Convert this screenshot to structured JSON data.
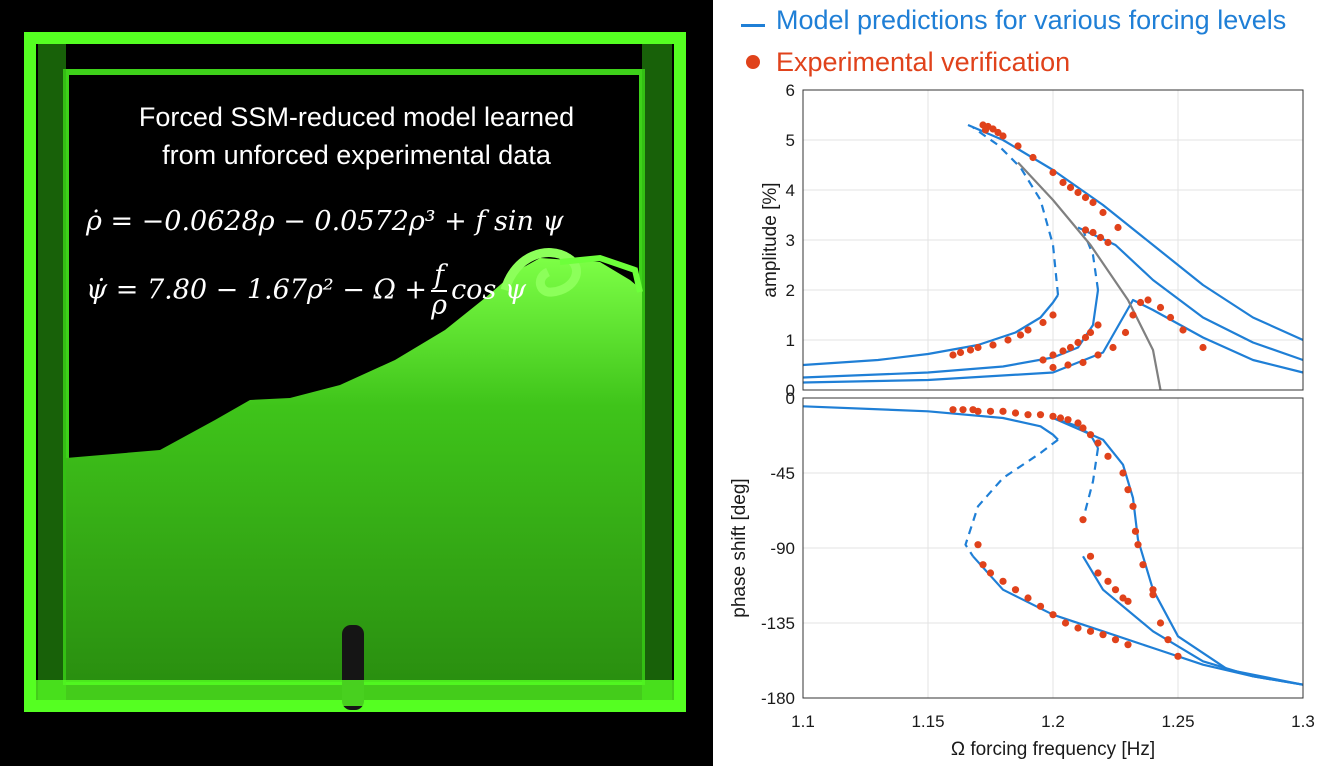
{
  "photo": {
    "caption_line1": "Forced SSM-reduced model learned",
    "caption_line2": "from unforced experimental data",
    "eq1": "ρ̇ = −0.0628ρ − 0.0572ρ³ + f sin ψ",
    "eq2_left": "ψ̇ = 7.80 − 1.67ρ² − Ω +",
    "eq2_num": "f",
    "eq2_den": "ρ",
    "eq2_right": "cos ψ",
    "tank_color": "#55ff22"
  },
  "legend": {
    "model": "Model predictions for various forcing levels",
    "experiment": "Experimental verification",
    "model_color": "#1f7fd6",
    "experiment_color": "#e0421b"
  },
  "chart_data": {
    "type": "line",
    "xlabel": "Ω forcing frequency [Hz]",
    "xlim": [
      1.1,
      1.3
    ],
    "x_ticks": [
      "1.1",
      "1.15",
      "1.2",
      "1.25",
      "1.3"
    ],
    "grid": true,
    "backbone_color": "#808080",
    "panels": [
      {
        "id": "amplitude",
        "ylabel": "amplitude [%]",
        "ylim": [
          0,
          6
        ],
        "y_ticks": [
          "6",
          "5",
          "4",
          "3",
          "2",
          "1",
          "0"
        ],
        "series": [
          {
            "style": "solid",
            "x": [
              1.1,
              1.13,
              1.15,
              1.17,
              1.185,
              1.195,
              1.2,
              1.202
            ],
            "y": [
              0.5,
              0.6,
              0.72,
              0.9,
              1.15,
              1.45,
              1.75,
              1.9
            ]
          },
          {
            "style": "dashed",
            "x": [
              1.202,
              1.2,
              1.195,
              1.187,
              1.178,
              1.168
            ],
            "y": [
              1.9,
              2.9,
              3.8,
              4.45,
              4.9,
              5.25
            ]
          },
          {
            "style": "solid",
            "x": [
              1.166,
              1.18,
              1.2,
              1.22,
              1.24,
              1.26,
              1.28,
              1.3
            ],
            "y": [
              5.3,
              5.0,
              4.4,
              3.7,
              2.9,
              2.1,
              1.45,
              1.0
            ]
          },
          {
            "style": "solid",
            "x": [
              1.1,
              1.15,
              1.18,
              1.2,
              1.21,
              1.216,
              1.218
            ],
            "y": [
              0.25,
              0.35,
              0.47,
              0.65,
              0.85,
              1.3,
              2.0
            ]
          },
          {
            "style": "dashed",
            "x": [
              1.218,
              1.216,
              1.212
            ],
            "y": [
              2.0,
              2.7,
              3.2
            ]
          },
          {
            "style": "solid",
            "x": [
              1.21,
              1.225,
              1.24,
              1.26,
              1.28,
              1.3
            ],
            "y": [
              3.25,
              2.9,
              2.2,
              1.45,
              0.95,
              0.6
            ]
          },
          {
            "style": "solid",
            "x": [
              1.1,
              1.15,
              1.2,
              1.22,
              1.232,
              1.24,
              1.26,
              1.28,
              1.3
            ],
            "y": [
              0.15,
              0.2,
              0.35,
              0.75,
              1.8,
              1.6,
              1.05,
              0.6,
              0.35
            ]
          },
          {
            "style": "backbone",
            "x": [
              1.186,
              1.2,
              1.215,
              1.23,
              1.24,
              1.243
            ],
            "y": [
              4.55,
              3.8,
              2.9,
              1.8,
              0.8,
              0
            ]
          }
        ],
        "experiment": {
          "x": [
            1.16,
            1.163,
            1.167,
            1.17,
            1.176,
            1.182,
            1.187,
            1.19,
            1.196,
            1.2,
            1.172,
            1.174,
            1.176,
            1.178,
            1.18,
            1.186,
            1.192,
            1.2,
            1.204,
            1.207,
            1.21,
            1.213,
            1.216,
            1.22,
            1.226,
            1.173,
            1.196,
            1.2,
            1.204,
            1.207,
            1.21,
            1.213,
            1.215,
            1.218,
            1.213,
            1.216,
            1.219,
            1.222,
            1.2,
            1.206,
            1.212,
            1.218,
            1.224,
            1.229,
            1.232,
            1.235,
            1.238,
            1.243,
            1.247,
            1.252,
            1.26
          ],
          "y": [
            0.7,
            0.75,
            0.8,
            0.85,
            0.9,
            1.0,
            1.1,
            1.2,
            1.35,
            1.5,
            5.3,
            5.27,
            5.22,
            5.15,
            5.08,
            4.88,
            4.65,
            4.35,
            4.15,
            4.05,
            3.95,
            3.85,
            3.75,
            3.55,
            3.25,
            5.2,
            0.6,
            0.7,
            0.78,
            0.85,
            0.95,
            1.05,
            1.15,
            1.3,
            3.2,
            3.15,
            3.05,
            2.95,
            0.45,
            0.5,
            0.55,
            0.7,
            0.85,
            1.15,
            1.5,
            1.75,
            1.8,
            1.65,
            1.45,
            1.2,
            0.85
          ]
        }
      },
      {
        "id": "phase",
        "ylabel": "phase shift [deg]",
        "ylim": [
          -180,
          0
        ],
        "y_ticks": [
          "0",
          "-45",
          "-90",
          "-135",
          "-180"
        ],
        "series": [
          {
            "style": "solid",
            "x": [
              1.1,
              1.15,
              1.18,
              1.195,
              1.2,
              1.202
            ],
            "y": [
              -5,
              -8,
              -12,
              -17,
              -22,
              -25
            ]
          },
          {
            "style": "dashed",
            "x": [
              1.202,
              1.195,
              1.18,
              1.17,
              1.165,
              1.168
            ],
            "y": [
              -25,
              -33,
              -48,
              -65,
              -88,
              -95
            ]
          },
          {
            "style": "solid",
            "x": [
              1.168,
              1.18,
              1.2,
              1.22,
              1.24,
              1.26,
              1.28,
              1.3
            ],
            "y": [
              -95,
              -115,
              -130,
              -140,
              -150,
              -160,
              -167,
              -172
            ]
          },
          {
            "style": "solid",
            "x": [
              1.2,
              1.21,
              1.215,
              1.218
            ],
            "y": [
              -12,
              -17,
              -22,
              -30
            ]
          },
          {
            "style": "dashed",
            "x": [
              1.218,
              1.216,
              1.212
            ],
            "y": [
              -30,
              -50,
              -73
            ]
          },
          {
            "style": "solid",
            "x": [
              1.212,
              1.22,
              1.24,
              1.26,
              1.28,
              1.3
            ],
            "y": [
              -95,
              -115,
              -140,
              -158,
              -167,
              -172
            ]
          },
          {
            "style": "solid",
            "x": [
              1.2,
              1.22,
              1.228,
              1.232,
              1.234,
              1.24,
              1.25,
              1.27,
              1.3
            ],
            "y": [
              -12,
              -25,
              -40,
              -60,
              -85,
              -115,
              -143,
              -163,
              -172
            ]
          }
        ],
        "experiment": {
          "x": [
            1.16,
            1.164,
            1.168,
            1.17,
            1.175,
            1.18,
            1.185,
            1.19,
            1.195,
            1.2,
            1.203,
            1.206,
            1.21,
            1.212,
            1.215,
            1.218,
            1.222,
            1.228,
            1.23,
            1.232,
            1.233,
            1.234,
            1.236,
            1.24,
            1.24,
            1.243,
            1.246,
            1.25,
            1.17,
            1.172,
            1.175,
            1.18,
            1.185,
            1.19,
            1.195,
            1.2,
            1.205,
            1.21,
            1.215,
            1.22,
            1.225,
            1.23,
            1.212,
            1.215,
            1.218,
            1.222,
            1.225,
            1.228,
            1.23
          ],
          "y": [
            -7,
            -7,
            -7,
            -8,
            -8,
            -8,
            -9,
            -10,
            -10,
            -11,
            -12,
            -13,
            -15,
            -18,
            -22,
            -27,
            -35,
            -45,
            -55,
            -65,
            -80,
            -88,
            -100,
            -115,
            -118,
            -135,
            -145,
            -155,
            -88,
            -100,
            -105,
            -110,
            -115,
            -120,
            -125,
            -130,
            -135,
            -138,
            -140,
            -142,
            -145,
            -148,
            -73,
            -95,
            -105,
            -110,
            -115,
            -120,
            -122
          ]
        }
      }
    ]
  }
}
